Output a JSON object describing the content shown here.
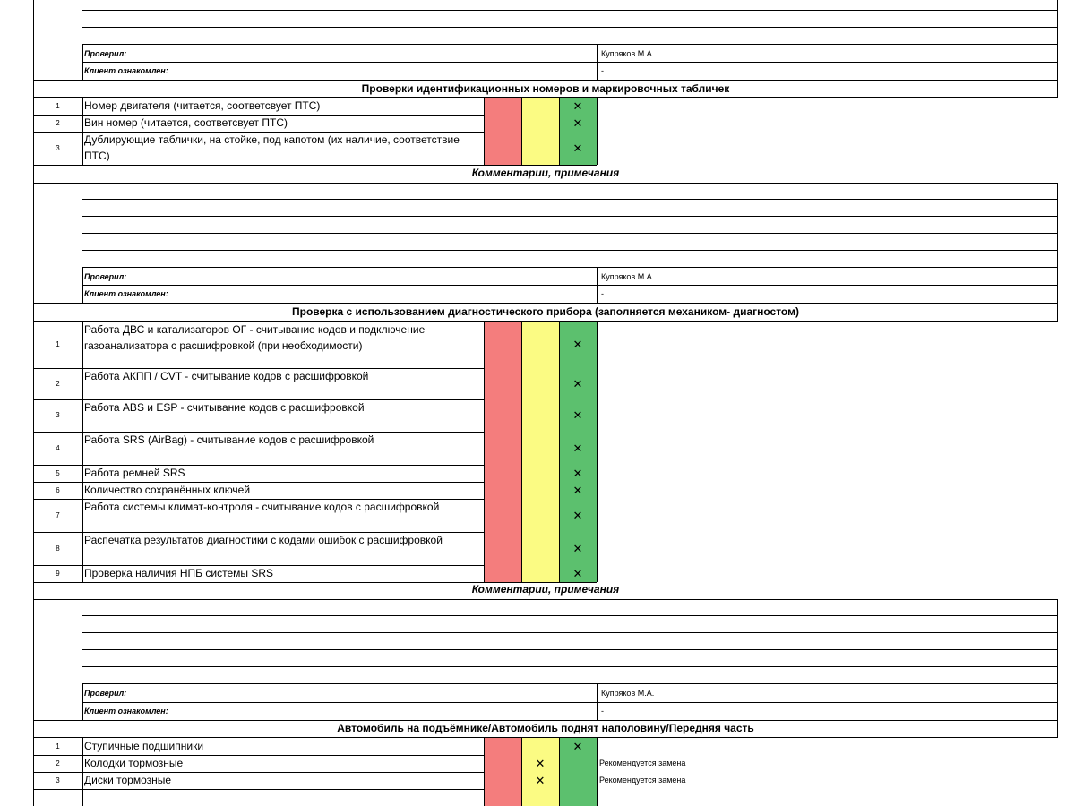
{
  "block1": {
    "checked_label": "Проверил:",
    "checked_value": "Купряков М.А.",
    "client_label": "Клиент ознакомлен:",
    "client_value": "-"
  },
  "section1": {
    "title": "Проверки идентификационных номеров и маркировочных табличек",
    "items": [
      {
        "num": "1",
        "text": "Номер двигателя (читается, соответсвует ПТС)",
        "mark": "✕"
      },
      {
        "num": "2",
        "text": "Вин номер (читается, соответсвует ПТС)",
        "mark": "✕"
      },
      {
        "num": "3",
        "text": "Дублирующие таблички, на стойке, под капотом (их наличие, соответствие ПТС)",
        "mark": "✕"
      }
    ],
    "comments_title": "Комментарии, примечания"
  },
  "block2": {
    "checked_label": "Проверил:",
    "checked_value": "Купряков М.А.",
    "client_label": "Клиент ознакомлен:",
    "client_value": "-"
  },
  "section2": {
    "title": "Проверка с использованием диагностического прибора (заполняется механиком- диагностом)",
    "items": [
      {
        "num": "1",
        "text": "Работа ДВС и катализаторов ОГ - считывание кодов и подключение газоанализатора с расшифровкой (при необходимости)",
        "mark": "✕"
      },
      {
        "num": "2",
        "text": "Работа АКПП / CVT - считывание кодов с расшифровкой",
        "mark": "✕"
      },
      {
        "num": "3",
        "text": "Работа ABS и ESP - считывание кодов с расшифровкой",
        "mark": "✕"
      },
      {
        "num": "4",
        "text": "Работа SRS (AirBag) - считывание кодов с расшифровкой",
        "mark": "✕"
      },
      {
        "num": "5",
        "text": "Работа ремней SRS",
        "mark": "✕"
      },
      {
        "num": "6",
        "text": "Количество сохранённых ключей",
        "mark": "✕"
      },
      {
        "num": "7",
        "text": "Работа системы климат-контроля - считывание кодов с расшифровкой",
        "mark": "✕"
      },
      {
        "num": "8",
        "text": "Распечатка результатов диагностики с кодами ошибок с расшифровкой",
        "mark": "✕"
      },
      {
        "num": "9",
        "text": "Проверка наличия НПБ системы SRS",
        "mark": "✕"
      }
    ],
    "comments_title": "Комментарии, примечания"
  },
  "block3": {
    "checked_label": "Проверил:",
    "checked_value": "Купряков М.А.",
    "client_label": "Клиент ознакомлен:",
    "client_value": "-"
  },
  "section3": {
    "title": "Автомобиль на подъёмнике/Автомобиль поднят наполовину/Передняя часть",
    "items": [
      {
        "num": "1",
        "text": "Ступичные подшипники",
        "mark": "✕",
        "note": ""
      },
      {
        "num": "2",
        "text": "Колодки тормозные",
        "mark": "✕",
        "note": "Рекомендуется замена"
      },
      {
        "num": "3",
        "text": "Диски тормозные",
        "mark": "✕",
        "note": "Рекомендуется замена"
      }
    ]
  },
  "colors": {
    "red": "#f47d7d",
    "yellow": "#fbfb83",
    "green": "#5cc06e"
  }
}
